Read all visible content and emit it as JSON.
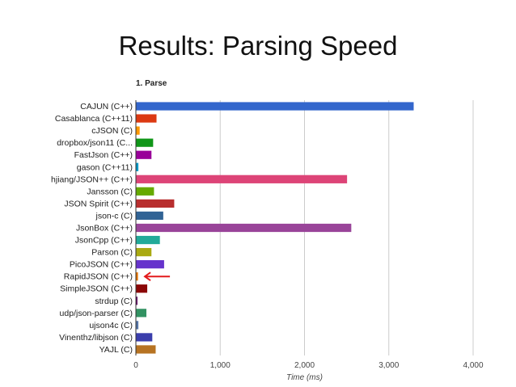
{
  "slide": {
    "title": "Results: Parsing Speed"
  },
  "chart_data": {
    "type": "bar",
    "orientation": "horizontal",
    "title": "1. Parse",
    "xlabel": "Time (ms)",
    "ylabel": "",
    "xlim": [
      0,
      4000
    ],
    "xticks": [
      "0",
      "1,000",
      "2,000",
      "3,000",
      "4,000"
    ],
    "grid": true,
    "categories": [
      "CAJUN (C++)",
      "Casablanca (C++11)",
      "cJSON (C)",
      "dropbox/json11 (C...",
      "FastJson (C++)",
      "gason (C++11)",
      "hjiang/JSON++ (C++)",
      "Jansson (C)",
      "JSON Spirit (C++)",
      "json-c (C)",
      "JsonBox (C++)",
      "JsonCpp (C++)",
      "Parson (C)",
      "PicoJSON (C++)",
      "RapidJSON (C++)",
      "SimpleJSON (C++)",
      "strdup (C)",
      "udp/json-parser (C)",
      "ujson4c (C)",
      "Vinenthz/libjson (C)",
      "YAJL (C)"
    ],
    "values": [
      3290,
      240,
      40,
      200,
      180,
      25,
      2500,
      210,
      450,
      320,
      2550,
      280,
      180,
      330,
      20,
      130,
      5,
      120,
      25,
      190,
      230
    ],
    "colors": [
      "#3366cc",
      "#dc3912",
      "#ff9900",
      "#109618",
      "#990099",
      "#0099c6",
      "#dd4477",
      "#66aa00",
      "#b82e2e",
      "#316395",
      "#994499",
      "#22aa99",
      "#aaaa11",
      "#6633cc",
      "#e67300",
      "#8b0707",
      "#651067",
      "#329262",
      "#5574a6",
      "#3b3eac",
      "#b77322"
    ],
    "annotation": {
      "type": "arrow",
      "target": "RapidJSON (C++)",
      "color": "#e31a1c"
    }
  }
}
